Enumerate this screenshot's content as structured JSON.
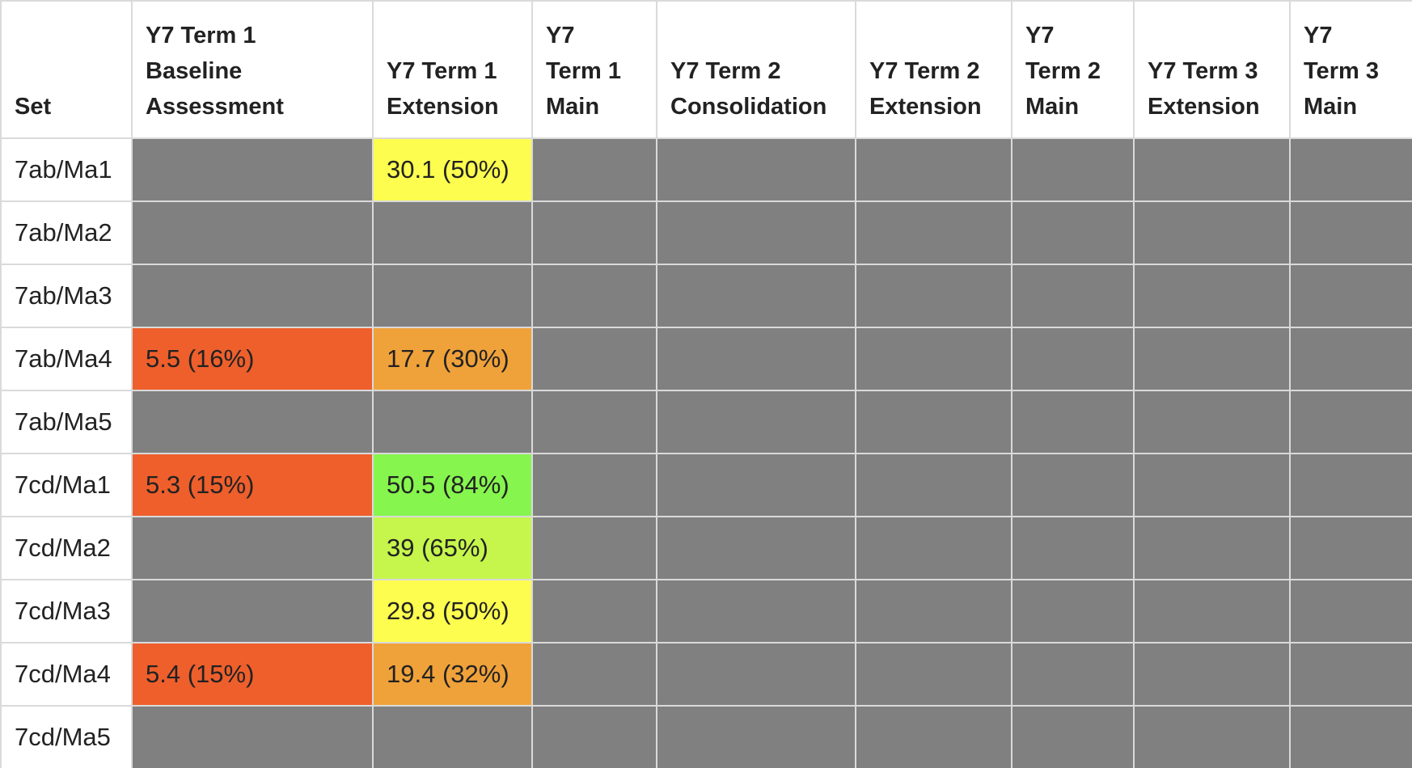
{
  "table": {
    "columns": [
      {
        "lines": [
          "Set"
        ]
      },
      {
        "lines": [
          "Y7 Term 1",
          "Baseline",
          "Assessment"
        ]
      },
      {
        "lines": [
          "Y7 Term 1",
          "Extension"
        ]
      },
      {
        "lines": [
          "Y7",
          "Term 1",
          "Main"
        ]
      },
      {
        "lines": [
          "Y7 Term 2",
          "Consolidation"
        ]
      },
      {
        "lines": [
          "Y7 Term 2",
          "Extension"
        ]
      },
      {
        "lines": [
          "Y7",
          "Term 2",
          "Main"
        ]
      },
      {
        "lines": [
          "Y7 Term 3",
          "Extension"
        ]
      },
      {
        "lines": [
          "Y7",
          "Term 3",
          "Main"
        ]
      }
    ],
    "colors": {
      "empty": "#808080",
      "red": "#ee5f2c",
      "orange": "#f0a23a",
      "yellow": "#fdfd4f",
      "yellow_green": "#c6f54c",
      "green": "#86f54e"
    },
    "rows": [
      {
        "set": "7ab/Ma1",
        "cells": [
          {
            "text": ""
          },
          {
            "text": "30.1 (50%)",
            "color": "yellow"
          },
          {
            "text": ""
          },
          {
            "text": ""
          },
          {
            "text": ""
          },
          {
            "text": ""
          },
          {
            "text": ""
          },
          {
            "text": ""
          }
        ]
      },
      {
        "set": "7ab/Ma2",
        "cells": [
          {
            "text": ""
          },
          {
            "text": ""
          },
          {
            "text": ""
          },
          {
            "text": ""
          },
          {
            "text": ""
          },
          {
            "text": ""
          },
          {
            "text": ""
          },
          {
            "text": ""
          }
        ]
      },
      {
        "set": "7ab/Ma3",
        "cells": [
          {
            "text": ""
          },
          {
            "text": ""
          },
          {
            "text": ""
          },
          {
            "text": ""
          },
          {
            "text": ""
          },
          {
            "text": ""
          },
          {
            "text": ""
          },
          {
            "text": ""
          }
        ]
      },
      {
        "set": "7ab/Ma4",
        "cells": [
          {
            "text": "5.5 (16%)",
            "color": "red"
          },
          {
            "text": "17.7 (30%)",
            "color": "orange"
          },
          {
            "text": ""
          },
          {
            "text": ""
          },
          {
            "text": ""
          },
          {
            "text": ""
          },
          {
            "text": ""
          },
          {
            "text": ""
          }
        ]
      },
      {
        "set": "7ab/Ma5",
        "cells": [
          {
            "text": ""
          },
          {
            "text": ""
          },
          {
            "text": ""
          },
          {
            "text": ""
          },
          {
            "text": ""
          },
          {
            "text": ""
          },
          {
            "text": ""
          },
          {
            "text": ""
          }
        ]
      },
      {
        "set": "7cd/Ma1",
        "cells": [
          {
            "text": "5.3 (15%)",
            "color": "red"
          },
          {
            "text": "50.5 (84%)",
            "color": "green"
          },
          {
            "text": ""
          },
          {
            "text": ""
          },
          {
            "text": ""
          },
          {
            "text": ""
          },
          {
            "text": ""
          },
          {
            "text": ""
          }
        ]
      },
      {
        "set": "7cd/Ma2",
        "cells": [
          {
            "text": ""
          },
          {
            "text": "39 (65%)",
            "color": "yellow_green"
          },
          {
            "text": ""
          },
          {
            "text": ""
          },
          {
            "text": ""
          },
          {
            "text": ""
          },
          {
            "text": ""
          },
          {
            "text": ""
          }
        ]
      },
      {
        "set": "7cd/Ma3",
        "cells": [
          {
            "text": ""
          },
          {
            "text": "29.8 (50%)",
            "color": "yellow"
          },
          {
            "text": ""
          },
          {
            "text": ""
          },
          {
            "text": ""
          },
          {
            "text": ""
          },
          {
            "text": ""
          },
          {
            "text": ""
          }
        ]
      },
      {
        "set": "7cd/Ma4",
        "cells": [
          {
            "text": "5.4 (15%)",
            "color": "red"
          },
          {
            "text": "19.4 (32%)",
            "color": "orange"
          },
          {
            "text": ""
          },
          {
            "text": ""
          },
          {
            "text": ""
          },
          {
            "text": ""
          },
          {
            "text": ""
          },
          {
            "text": ""
          }
        ]
      },
      {
        "set": "7cd/Ma5",
        "cells": [
          {
            "text": ""
          },
          {
            "text": ""
          },
          {
            "text": ""
          },
          {
            "text": ""
          },
          {
            "text": ""
          },
          {
            "text": ""
          },
          {
            "text": ""
          },
          {
            "text": ""
          }
        ]
      }
    ]
  }
}
